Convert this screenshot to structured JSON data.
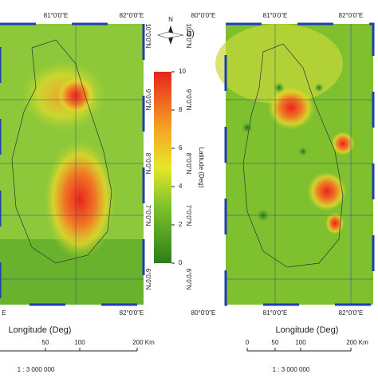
{
  "panel_a": {
    "top_labels": [
      "81°0'0\"E",
      "82°0'0\"E"
    ],
    "bottom_labels": [
      "E",
      "82°0'0\"E"
    ],
    "lat_labels": [
      "10°0'0\"N",
      "9°0'0\"N",
      "8°0'0\"N",
      "7°0'0\"N",
      "6°0'0\"N"
    ],
    "axis_label": "Longitude (Deg)",
    "scale_labels": [
      "50",
      "100",
      "200 Km"
    ],
    "scale_ratio": "1 : 3 000 000"
  },
  "north": "N",
  "colorbar": {
    "label": "Latitude (Deg)",
    "range": [
      0,
      10
    ],
    "ticks": [
      0,
      2,
      4,
      6,
      8,
      10
    ]
  },
  "panel_b": {
    "tag": "b)",
    "top_labels": [
      "80°0'0\"E",
      "81°0'0\"E",
      "82°0'0\"E"
    ],
    "bottom_labels": [
      "80°0'0\"E",
      "81°0'0\"E",
      "82°0'0\"E"
    ],
    "lat_labels": [
      "10°0'0\"N",
      "9°0'0\"N",
      "8°0'0\"N",
      "7°0'0\"N",
      "6°0'0\"N"
    ],
    "axis_label": "Longitude (Deg)",
    "scale_labels": [
      "0",
      "50",
      "100",
      "200 Km"
    ],
    "scale_ratio": "1 : 3 000 000"
  }
}
